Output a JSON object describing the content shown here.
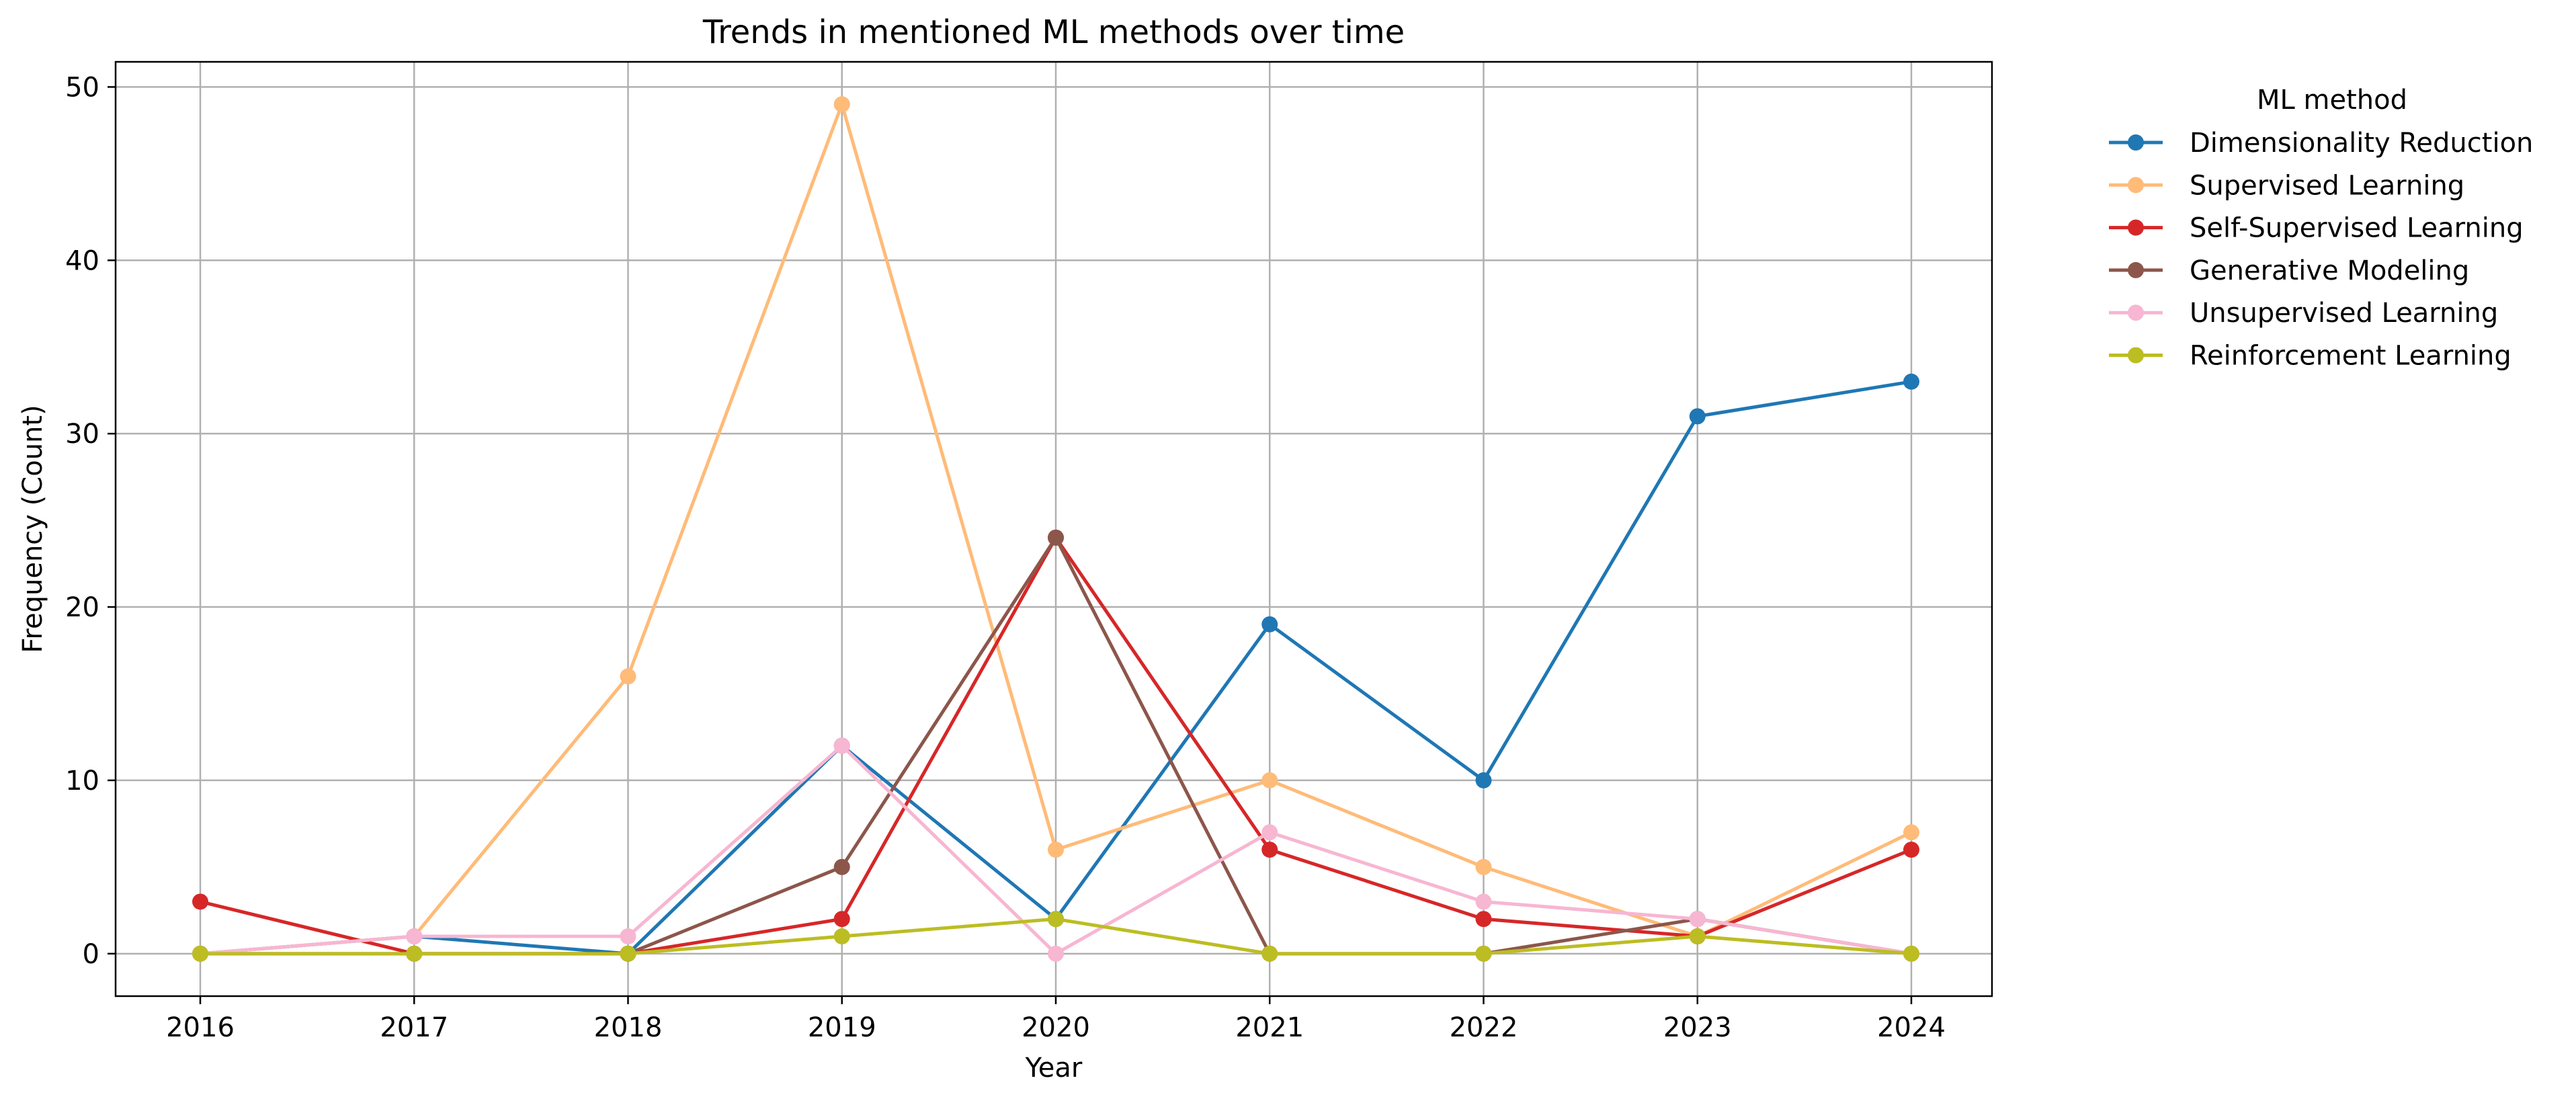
{
  "chart_data": {
    "type": "line",
    "title": "Trends in mentioned ML methods over time",
    "xlabel": "Year",
    "ylabel": "Frequency (Count)",
    "x": [
      "2016",
      "2017",
      "2018",
      "2019",
      "2020",
      "2021",
      "2022",
      "2023",
      "2024"
    ],
    "yticks": [
      "0",
      "10",
      "20",
      "30",
      "40",
      "50"
    ],
    "ylim": [
      -2.45,
      51.45
    ],
    "grid": true,
    "legend_title": "ML method",
    "legend_position": "outside-top-right",
    "series": [
      {
        "name": "Dimensionality Reduction",
        "color": "#1f77b4",
        "values": [
          0,
          1,
          0,
          12,
          2,
          19,
          10,
          31,
          33
        ]
      },
      {
        "name": "Supervised Learning",
        "color": "#ffbb78",
        "values": [
          0,
          1,
          16,
          49,
          6,
          10,
          5,
          1,
          7
        ]
      },
      {
        "name": "Self-Supervised Learning",
        "color": "#d62728",
        "values": [
          3,
          0,
          0,
          2,
          24,
          6,
          2,
          1,
          6
        ]
      },
      {
        "name": "Generative Modeling",
        "color": "#8c564b",
        "values": [
          0,
          0,
          0,
          5,
          24,
          0,
          0,
          2,
          0
        ]
      },
      {
        "name": "Unsupervised Learning",
        "color": "#f7b6d2",
        "values": [
          0,
          1,
          1,
          12,
          0,
          7,
          3,
          2,
          0
        ]
      },
      {
        "name": "Reinforcement Learning",
        "color": "#bcbd22",
        "values": [
          0,
          0,
          0,
          1,
          2,
          0,
          0,
          1,
          0
        ]
      }
    ]
  }
}
